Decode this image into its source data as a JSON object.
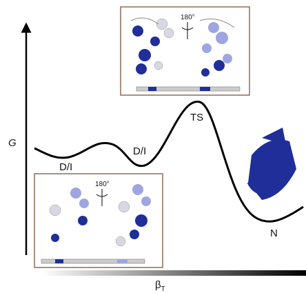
{
  "axis": {
    "y_label": "G",
    "x_label": "β",
    "x_label_sub": "T"
  },
  "states": [
    {
      "label": "D/I"
    },
    {
      "label": "D/I"
    },
    {
      "label": "TS"
    },
    {
      "label": "N"
    }
  ],
  "insets": [
    {
      "rotation": "180°"
    },
    {
      "rotation": "180°"
    }
  ]
}
